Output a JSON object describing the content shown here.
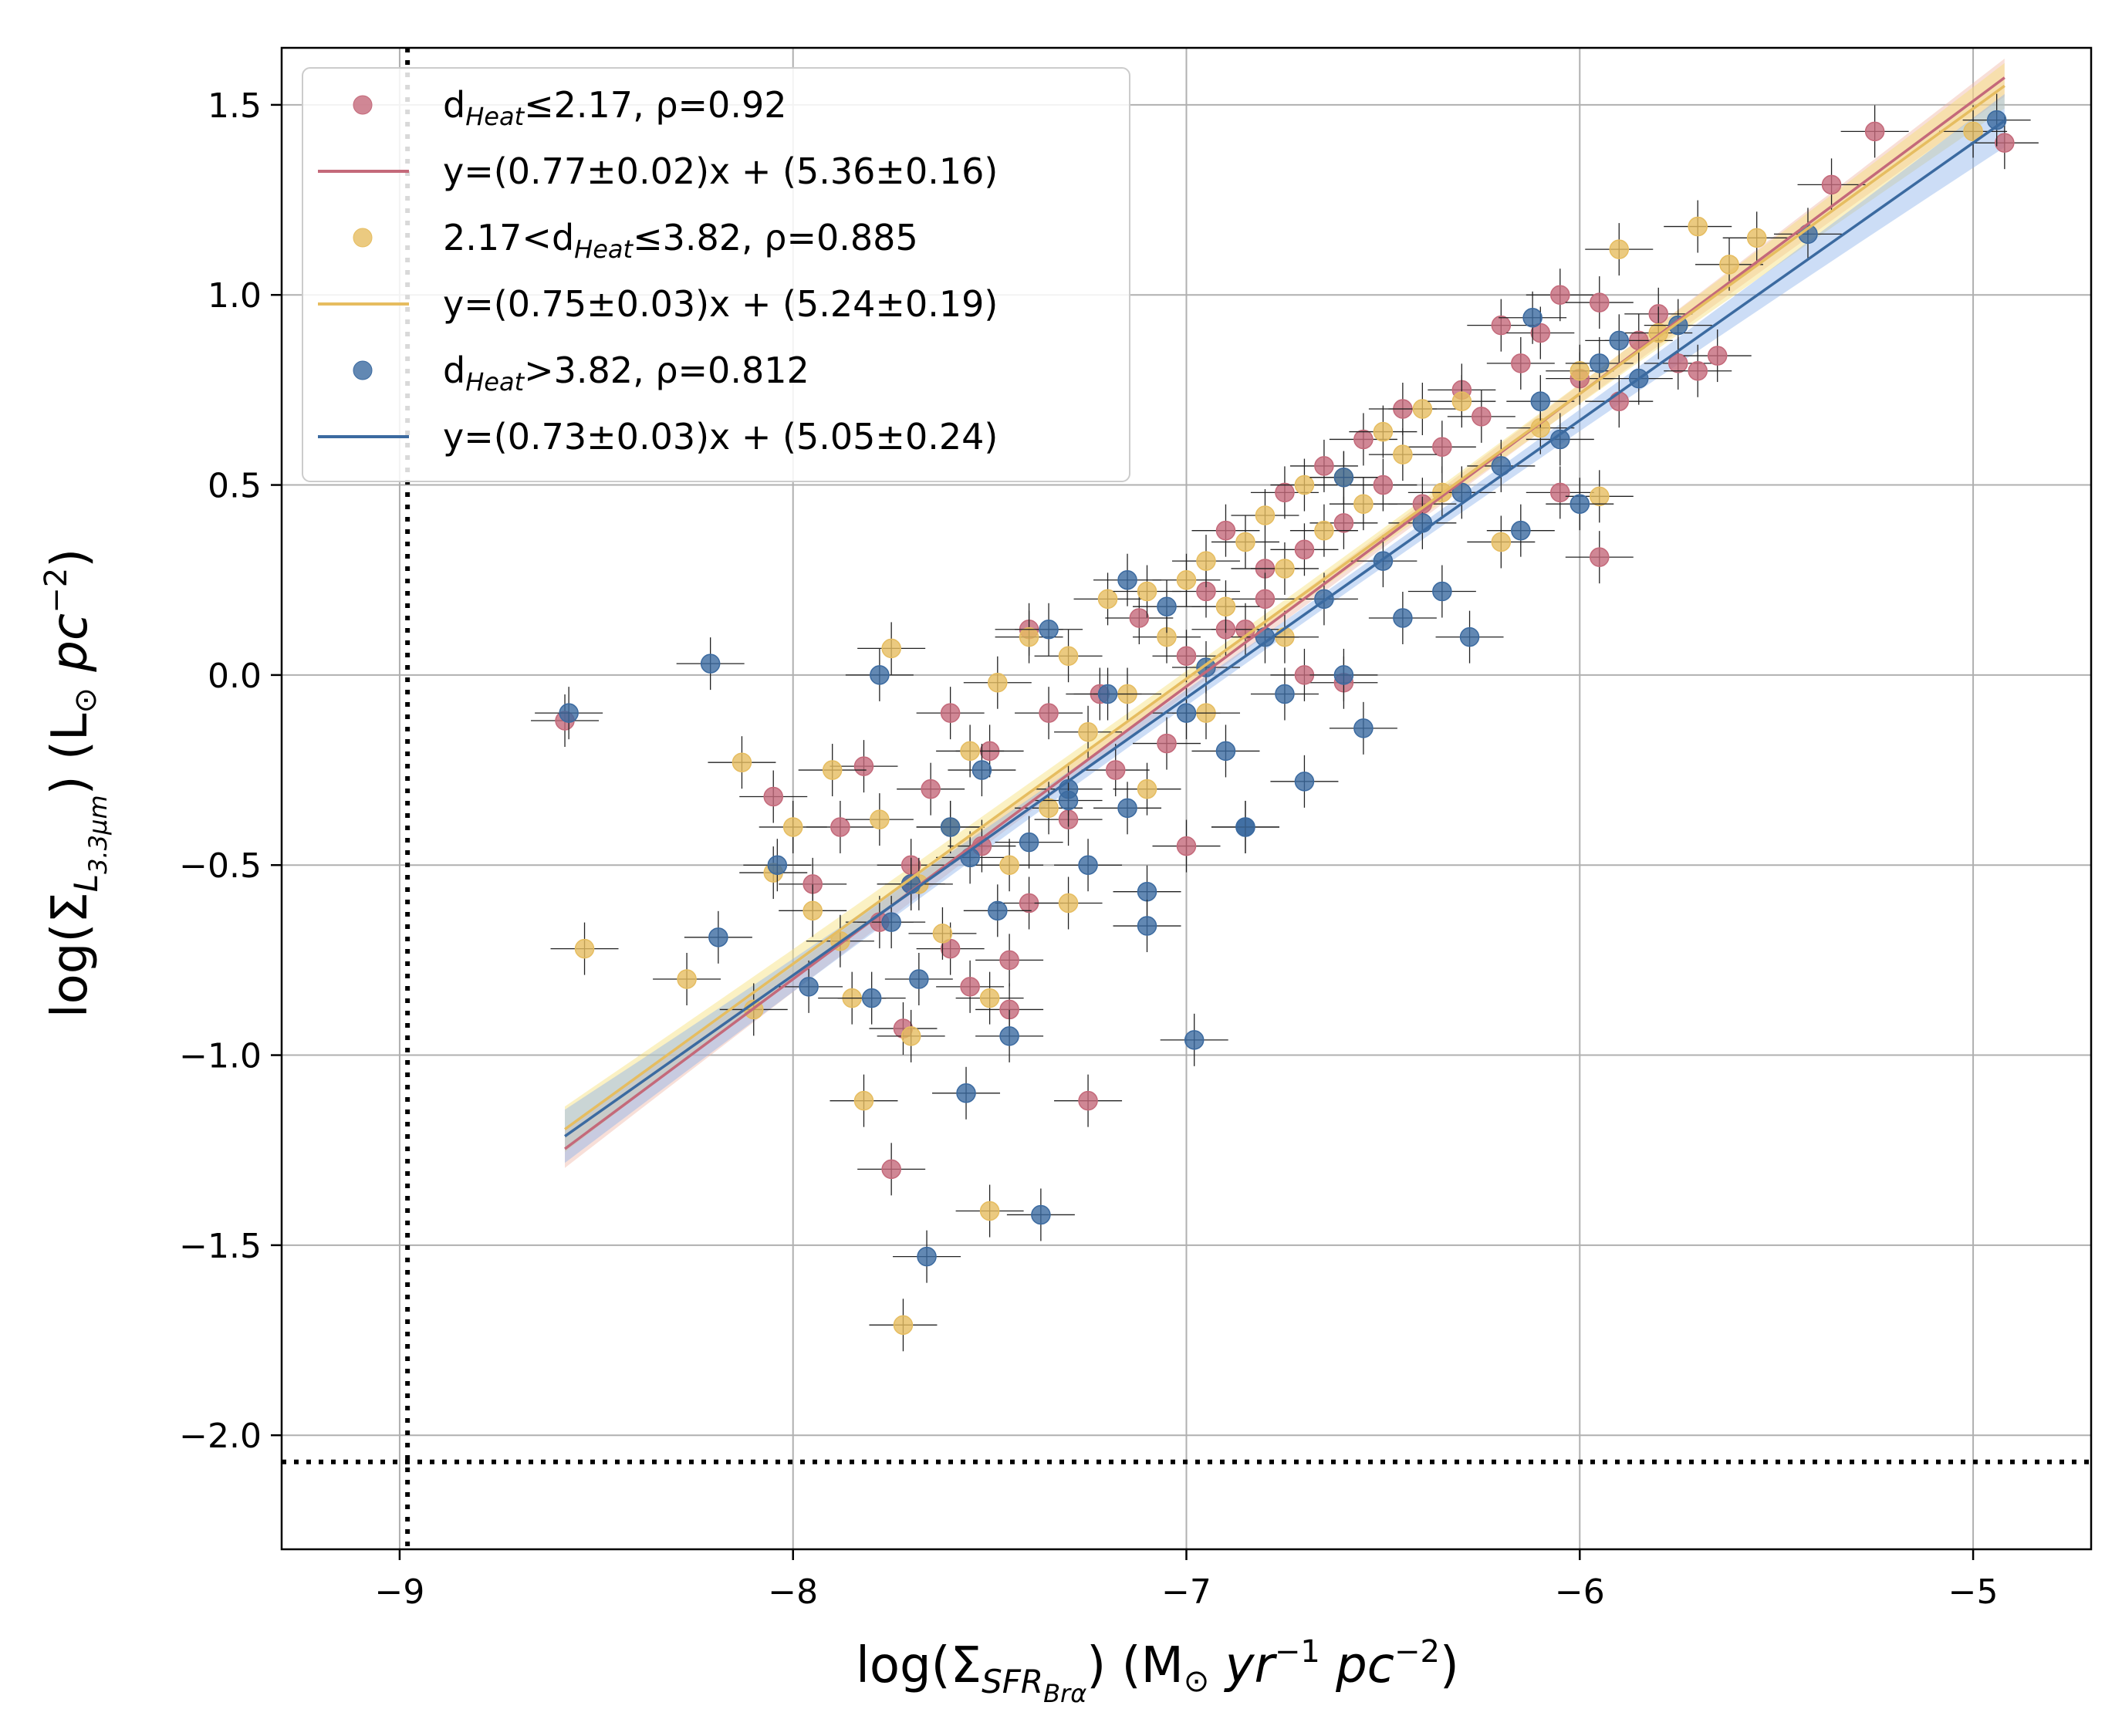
{
  "chart_data": {
    "type": "scatter",
    "title": "",
    "xlabel": {
      "prefix": "log(Σ",
      "sub": "SFR",
      "subsub": "Brα",
      "suffix": ") (M",
      "sun": "⊙",
      "unit1": " yr",
      "exp1": "−1",
      "unit2": " pc",
      "exp2": "−2",
      "close": ")"
    },
    "ylabel": {
      "prefix": "log(Σ",
      "sub": "L",
      "subsub": "3.3μm",
      "suffix": ") (L",
      "sun": "⊙",
      "unit": " pc",
      "exp": "−2",
      "close": ")"
    },
    "xlim": [
      -9.3,
      -4.7
    ],
    "ylim": [
      -2.3,
      1.65
    ],
    "xticks": [
      -9,
      -8,
      -7,
      -6,
      -5
    ],
    "yticks": [
      -2.0,
      -1.5,
      -1.0,
      -0.5,
      0.0,
      0.5,
      1.0,
      1.5
    ],
    "grid": true,
    "legend_position": "top-left",
    "reference_lines": [
      {
        "orientation": "vertical",
        "value": -8.98,
        "style": "dotted",
        "color": "#000000"
      },
      {
        "orientation": "horizontal",
        "value": -2.07,
        "style": "dotted",
        "color": "#000000"
      }
    ],
    "series": [
      {
        "name": "d_Heat ≤ 2.17, ρ=0.92",
        "legend_parts": {
          "base": "d",
          "sub": "Heat",
          "rest": "≤2.17, ρ=0.92"
        },
        "fit_label": "y=(0.77±0.02)x + (5.36±0.16)",
        "color": "#c4697a",
        "band_color": "#f0b7a8",
        "slope": 0.77,
        "intercept": 5.36,
        "fit_xrange": [
          -8.58,
          -4.92
        ],
        "points": [
          [
            -8.58,
            -0.12
          ],
          [
            -8.05,
            -0.32
          ],
          [
            -7.95,
            -0.55
          ],
          [
            -7.88,
            -0.4
          ],
          [
            -7.82,
            -0.24
          ],
          [
            -7.78,
            -0.65
          ],
          [
            -7.75,
            -1.3
          ],
          [
            -7.72,
            -0.93
          ],
          [
            -7.7,
            -0.5
          ],
          [
            -7.65,
            -0.3
          ],
          [
            -7.6,
            -0.72
          ],
          [
            -7.55,
            -0.82
          ],
          [
            -7.52,
            -0.45
          ],
          [
            -7.5,
            -0.2
          ],
          [
            -7.45,
            -0.88
          ],
          [
            -7.4,
            -0.6
          ],
          [
            -7.35,
            -0.1
          ],
          [
            -7.3,
            -0.38
          ],
          [
            -7.25,
            -1.12
          ],
          [
            -7.22,
            -0.05
          ],
          [
            -7.18,
            -0.25
          ],
          [
            -7.12,
            0.15
          ],
          [
            -7.05,
            -0.18
          ],
          [
            -7.0,
            0.05
          ],
          [
            -6.95,
            0.22
          ],
          [
            -6.9,
            0.38
          ],
          [
            -6.85,
            0.12
          ],
          [
            -6.8,
            0.28
          ],
          [
            -6.75,
            0.48
          ],
          [
            -6.7,
            0.33
          ],
          [
            -6.65,
            0.55
          ],
          [
            -6.6,
            0.4
          ],
          [
            -6.55,
            0.62
          ],
          [
            -6.5,
            0.5
          ],
          [
            -6.45,
            0.7
          ],
          [
            -6.4,
            0.45
          ],
          [
            -6.35,
            0.6
          ],
          [
            -6.3,
            0.75
          ],
          [
            -6.25,
            0.68
          ],
          [
            -6.2,
            0.92
          ],
          [
            -6.15,
            0.82
          ],
          [
            -6.1,
            0.9
          ],
          [
            -6.05,
            1.0
          ],
          [
            -6.0,
            0.78
          ],
          [
            -5.95,
            0.98
          ],
          [
            -5.9,
            0.72
          ],
          [
            -5.85,
            0.88
          ],
          [
            -5.8,
            0.95
          ],
          [
            -5.75,
            0.82
          ],
          [
            -5.7,
            0.8
          ],
          [
            -5.65,
            0.84
          ],
          [
            -5.36,
            1.29
          ],
          [
            -5.25,
            1.43
          ],
          [
            -4.92,
            1.4
          ],
          [
            -5.95,
            0.31
          ],
          [
            -6.05,
            0.48
          ],
          [
            -6.6,
            -0.02
          ],
          [
            -6.8,
            0.2
          ],
          [
            -7.4,
            0.12
          ],
          [
            -7.6,
            -0.1
          ],
          [
            -7.7,
            -0.55
          ],
          [
            -7.45,
            -0.75
          ],
          [
            -7.0,
            -0.45
          ],
          [
            -6.9,
            0.12
          ],
          [
            -6.7,
            0.0
          ]
        ]
      },
      {
        "name": "2.17<d_Heat ≤ 3.82, ρ=0.885",
        "legend_parts": {
          "pre": "2.17<d",
          "sub": "Heat",
          "rest": "≤3.82, ρ=0.885"
        },
        "fit_label": "y=(0.75±0.03)x + (5.24±0.19)",
        "color": "#e6bd60",
        "band_color": "#f7e07a",
        "slope": 0.75,
        "intercept": 5.24,
        "fit_xrange": [
          -8.58,
          -4.92
        ],
        "points": [
          [
            -8.53,
            -0.72
          ],
          [
            -8.27,
            -0.8
          ],
          [
            -8.13,
            -0.23
          ],
          [
            -8.1,
            -0.88
          ],
          [
            -8.0,
            -0.4
          ],
          [
            -7.95,
            -0.62
          ],
          [
            -7.9,
            -0.25
          ],
          [
            -7.88,
            -0.7
          ],
          [
            -7.85,
            -0.85
          ],
          [
            -7.82,
            -1.12
          ],
          [
            -7.78,
            -0.38
          ],
          [
            -7.75,
            0.07
          ],
          [
            -7.72,
            -1.71
          ],
          [
            -7.68,
            -0.55
          ],
          [
            -7.62,
            -0.68
          ],
          [
            -7.55,
            -0.2
          ],
          [
            -7.5,
            -1.41
          ],
          [
            -7.48,
            -0.02
          ],
          [
            -7.45,
            -0.5
          ],
          [
            -7.4,
            0.1
          ],
          [
            -7.35,
            -0.35
          ],
          [
            -7.3,
            0.05
          ],
          [
            -7.25,
            -0.15
          ],
          [
            -7.2,
            0.2
          ],
          [
            -7.15,
            -0.05
          ],
          [
            -7.1,
            0.22
          ],
          [
            -7.05,
            0.1
          ],
          [
            -7.0,
            0.25
          ],
          [
            -6.95,
            0.3
          ],
          [
            -6.9,
            0.18
          ],
          [
            -6.85,
            0.35
          ],
          [
            -6.8,
            0.42
          ],
          [
            -6.75,
            0.28
          ],
          [
            -6.7,
            0.5
          ],
          [
            -6.65,
            0.38
          ],
          [
            -6.6,
            0.52
          ],
          [
            -6.55,
            0.45
          ],
          [
            -6.5,
            0.64
          ],
          [
            -6.45,
            0.58
          ],
          [
            -6.4,
            0.7
          ],
          [
            -6.35,
            0.48
          ],
          [
            -6.3,
            0.72
          ],
          [
            -6.2,
            0.35
          ],
          [
            -6.1,
            0.65
          ],
          [
            -6.0,
            0.8
          ],
          [
            -5.9,
            1.12
          ],
          [
            -5.8,
            0.9
          ],
          [
            -5.7,
            1.18
          ],
          [
            -5.62,
            1.08
          ],
          [
            -5.95,
            0.47
          ],
          [
            -5.55,
            1.15
          ],
          [
            -5.0,
            1.43
          ],
          [
            -7.6,
            -0.4
          ],
          [
            -7.3,
            -0.6
          ],
          [
            -7.1,
            -0.3
          ],
          [
            -6.95,
            -0.1
          ],
          [
            -6.75,
            0.1
          ],
          [
            -7.5,
            -0.85
          ],
          [
            -7.7,
            -0.95
          ],
          [
            -8.05,
            -0.52
          ]
        ]
      },
      {
        "name": "d_Heat > 3.82, ρ=0.812",
        "legend_parts": {
          "base": "d",
          "sub": "Heat",
          "rest": ">3.82, ρ=0.812"
        },
        "fit_label": "y=(0.73±0.03)x + (5.05±0.24)",
        "color": "#3b6aa0",
        "band_color": "#8fb4ea",
        "slope": 0.73,
        "intercept": 5.05,
        "fit_xrange": [
          -8.58,
          -4.92
        ],
        "points": [
          [
            -8.57,
            -0.1
          ],
          [
            -8.21,
            0.03
          ],
          [
            -8.19,
            -0.69
          ],
          [
            -8.04,
            -0.5
          ],
          [
            -7.96,
            -0.82
          ],
          [
            -7.8,
            -0.85
          ],
          [
            -7.78,
            0.0
          ],
          [
            -7.75,
            -0.65
          ],
          [
            -7.7,
            -0.55
          ],
          [
            -7.68,
            -0.8
          ],
          [
            -7.66,
            -1.53
          ],
          [
            -7.6,
            -0.4
          ],
          [
            -7.56,
            -1.1
          ],
          [
            -7.52,
            -0.25
          ],
          [
            -7.48,
            -0.62
          ],
          [
            -7.45,
            -0.95
          ],
          [
            -7.4,
            -0.44
          ],
          [
            -7.37,
            -1.42
          ],
          [
            -7.35,
            0.12
          ],
          [
            -7.3,
            -0.3
          ],
          [
            -7.25,
            -0.5
          ],
          [
            -7.2,
            -0.05
          ],
          [
            -7.15,
            -0.35
          ],
          [
            -7.1,
            -0.57
          ],
          [
            -7.05,
            0.18
          ],
          [
            -7.0,
            -0.1
          ],
          [
            -6.98,
            -0.96
          ],
          [
            -6.95,
            0.02
          ],
          [
            -6.9,
            -0.2
          ],
          [
            -6.85,
            -0.4
          ],
          [
            -6.8,
            0.1
          ],
          [
            -6.75,
            -0.05
          ],
          [
            -6.7,
            -0.28
          ],
          [
            -6.65,
            0.2
          ],
          [
            -6.6,
            0.0
          ],
          [
            -6.55,
            -0.14
          ],
          [
            -6.5,
            0.3
          ],
          [
            -6.45,
            0.15
          ],
          [
            -6.4,
            0.4
          ],
          [
            -6.35,
            0.22
          ],
          [
            -6.3,
            0.48
          ],
          [
            -6.28,
            0.1
          ],
          [
            -6.2,
            0.55
          ],
          [
            -6.15,
            0.38
          ],
          [
            -6.1,
            0.72
          ],
          [
            -6.05,
            0.62
          ],
          [
            -6.0,
            0.45
          ],
          [
            -5.95,
            0.82
          ],
          [
            -5.9,
            0.88
          ],
          [
            -5.85,
            0.78
          ],
          [
            -5.75,
            0.92
          ],
          [
            -5.42,
            1.16
          ],
          [
            -4.94,
            1.46
          ],
          [
            -6.12,
            0.94
          ],
          [
            -6.6,
            0.52
          ],
          [
            -7.15,
            0.25
          ],
          [
            -7.3,
            -0.33
          ],
          [
            -7.55,
            -0.48
          ],
          [
            -7.1,
            -0.66
          ],
          [
            -6.85,
            -0.4
          ]
        ]
      }
    ]
  }
}
